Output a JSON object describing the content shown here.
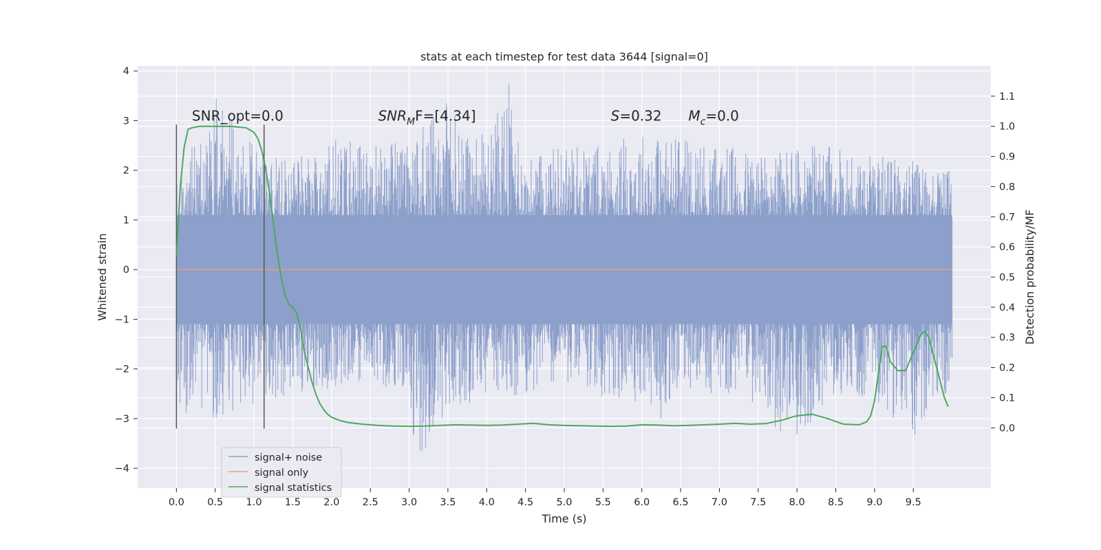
{
  "chart_data": {
    "type": "line",
    "title": "stats at each timestep for test data 3644 [signal=0]",
    "xlabel": "Time (s)",
    "ylabel": "Whitened strain",
    "y2label": "Detection probability/MF",
    "xlim": [
      -0.5,
      10.5
    ],
    "ylim": [
      -4.4,
      4.1
    ],
    "y2lim": [
      -0.2,
      1.2
    ],
    "x_ticks": [
      0.0,
      0.5,
      1.0,
      1.5,
      2.0,
      2.5,
      3.0,
      3.5,
      4.0,
      4.5,
      5.0,
      5.5,
      6.0,
      6.5,
      7.0,
      7.5,
      8.0,
      8.5,
      9.0,
      9.5
    ],
    "x_tick_labels": [
      "0.0",
      "0.5",
      "1.0",
      "1.5",
      "2.0",
      "2.5",
      "3.0",
      "3.5",
      "4.0",
      "4.5",
      "5.0",
      "5.5",
      "6.0",
      "6.5",
      "7.0",
      "7.5",
      "8.0",
      "8.5",
      "9.0",
      "9.5"
    ],
    "y_ticks": [
      -4,
      -3,
      -2,
      -1,
      0,
      1,
      2,
      3,
      4
    ],
    "y_tick_labels": [
      "−4",
      "−3",
      "−2",
      "−1",
      "0",
      "1",
      "2",
      "3",
      "4"
    ],
    "y2_ticks": [
      0.0,
      0.1,
      0.2,
      0.3,
      0.4,
      0.5,
      0.6,
      0.7,
      0.8,
      0.9,
      1.0,
      1.1
    ],
    "y2_tick_labels": [
      "0.0",
      "0.1",
      "0.2",
      "0.3",
      "0.4",
      "0.5",
      "0.6",
      "0.7",
      "0.8",
      "0.9",
      "1.0",
      "1.1"
    ],
    "grid": true,
    "legend_placement": "lower-left",
    "series": [
      {
        "name": "signal+ noise",
        "color": "#8da0cb",
        "x_range": [
          0.0,
          10.0
        ],
        "envelope_upper": [
          [
            0.0,
            1.8
          ],
          [
            0.5,
            3.5
          ],
          [
            1.0,
            2.5
          ],
          [
            1.5,
            2.2
          ],
          [
            2.0,
            2.6
          ],
          [
            2.5,
            2.6
          ],
          [
            3.0,
            2.6
          ],
          [
            3.5,
            3.4
          ],
          [
            4.0,
            2.7
          ],
          [
            4.3,
            3.8
          ],
          [
            4.5,
            2.2
          ],
          [
            5.0,
            2.6
          ],
          [
            5.5,
            2.5
          ],
          [
            6.0,
            2.8
          ],
          [
            6.5,
            2.7
          ],
          [
            7.0,
            2.5
          ],
          [
            7.5,
            2.4
          ],
          [
            8.0,
            2.5
          ],
          [
            8.5,
            2.5
          ],
          [
            9.0,
            2.3
          ],
          [
            9.5,
            2.2
          ],
          [
            10.0,
            2.0
          ]
        ],
        "envelope_lower": [
          [
            0.0,
            -3.1
          ],
          [
            0.5,
            -3.0
          ],
          [
            1.0,
            -2.7
          ],
          [
            1.5,
            -2.6
          ],
          [
            2.0,
            -2.4
          ],
          [
            2.5,
            -2.2
          ],
          [
            3.0,
            -2.6
          ],
          [
            3.1,
            -4.0
          ],
          [
            3.5,
            -2.8
          ],
          [
            4.0,
            -2.6
          ],
          [
            4.5,
            -2.5
          ],
          [
            5.0,
            -2.3
          ],
          [
            5.5,
            -2.6
          ],
          [
            6.0,
            -2.7
          ],
          [
            6.3,
            -3.1
          ],
          [
            6.5,
            -2.5
          ],
          [
            7.0,
            -2.5
          ],
          [
            7.5,
            -2.7
          ],
          [
            7.9,
            -3.6
          ],
          [
            8.5,
            -2.5
          ],
          [
            9.0,
            -2.6
          ],
          [
            9.5,
            -3.5
          ],
          [
            10.0,
            -2.3
          ]
        ]
      },
      {
        "name": "signal only",
        "color": "#e5a07f",
        "x": [
          0.0,
          10.0
        ],
        "y": [
          0.0,
          0.0
        ]
      },
      {
        "name": "signal statistics",
        "axis": "right",
        "color": "#4ca85c",
        "x": [
          0.0,
          0.05,
          0.1,
          0.15,
          0.2,
          0.3,
          0.5,
          0.7,
          0.9,
          1.0,
          1.05,
          1.1,
          1.15,
          1.2,
          1.25,
          1.3,
          1.35,
          1.4,
          1.45,
          1.5,
          1.55,
          1.6,
          1.65,
          1.7,
          1.75,
          1.8,
          1.85,
          1.9,
          1.95,
          2.0,
          2.1,
          2.2,
          2.4,
          2.6,
          2.8,
          3.0,
          3.2,
          3.4,
          3.6,
          3.8,
          4.0,
          4.2,
          4.4,
          4.6,
          4.8,
          5.0,
          5.2,
          5.4,
          5.6,
          5.8,
          6.0,
          6.2,
          6.4,
          6.6,
          6.8,
          7.0,
          7.2,
          7.4,
          7.6,
          7.8,
          8.0,
          8.2,
          8.4,
          8.6,
          8.8,
          8.9,
          8.95,
          9.0,
          9.05,
          9.1,
          9.15,
          9.2,
          9.3,
          9.4,
          9.5,
          9.6,
          9.65,
          9.7,
          9.8,
          9.9,
          9.95
        ],
        "y": [
          0.57,
          0.8,
          0.93,
          0.99,
          0.995,
          1.0,
          1.0,
          1.0,
          0.995,
          0.98,
          0.96,
          0.92,
          0.86,
          0.78,
          0.68,
          0.58,
          0.5,
          0.44,
          0.41,
          0.4,
          0.38,
          0.33,
          0.25,
          0.2,
          0.15,
          0.11,
          0.08,
          0.06,
          0.045,
          0.035,
          0.025,
          0.018,
          0.012,
          0.008,
          0.006,
          0.005,
          0.006,
          0.008,
          0.01,
          0.009,
          0.008,
          0.009,
          0.012,
          0.015,
          0.01,
          0.008,
          0.007,
          0.006,
          0.005,
          0.006,
          0.01,
          0.009,
          0.007,
          0.008,
          0.01,
          0.012,
          0.015,
          0.012,
          0.014,
          0.025,
          0.04,
          0.045,
          0.03,
          0.012,
          0.01,
          0.02,
          0.04,
          0.09,
          0.18,
          0.27,
          0.27,
          0.22,
          0.19,
          0.19,
          0.25,
          0.31,
          0.32,
          0.3,
          0.2,
          0.1,
          0.07
        ]
      }
    ],
    "vlines": [
      0.0,
      1.13
    ],
    "annotations": [
      {
        "id": "snr_opt",
        "x": 0.2,
        "y": 3.0,
        "text": "SNR_opt=0.0"
      },
      {
        "id": "snr_mf",
        "x": 2.6,
        "y": 3.0,
        "parts": [
          "SNR",
          "M",
          "F=[4.34]"
        ]
      },
      {
        "id": "s_stat",
        "x": 5.6,
        "y": 3.0,
        "parts": [
          "S",
          "=0.32"
        ]
      },
      {
        "id": "mc",
        "x": 6.6,
        "y": 3.0,
        "parts": [
          "M",
          "c",
          "=0.0"
        ]
      }
    ]
  }
}
